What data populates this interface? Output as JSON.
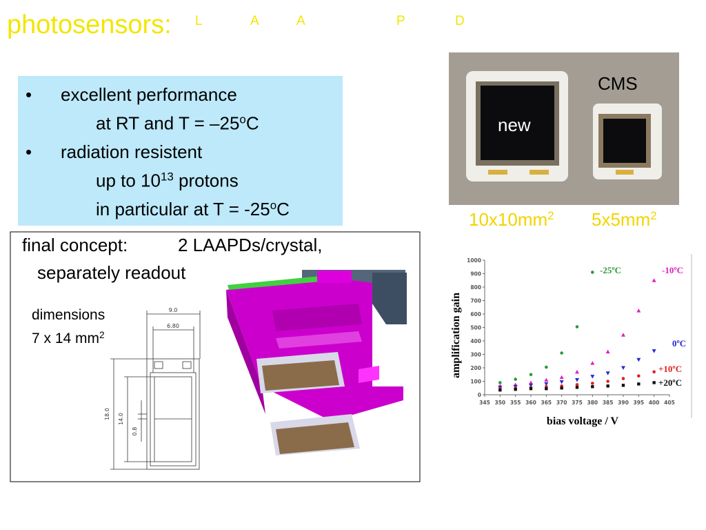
{
  "title": {
    "text": "photosensors:",
    "letters": [
      "L",
      "A",
      "A",
      "P",
      "D"
    ]
  },
  "features": {
    "lines": [
      {
        "bullet": "•",
        "parts": [
          {
            "t": "excellent performance"
          }
        ]
      },
      {
        "parts": [
          {
            "t": "at RT and T = –25"
          },
          {
            "sup": "o"
          },
          {
            "t": "C"
          }
        ]
      },
      {
        "bullet": "•",
        "parts": [
          {
            "t": "radiation resistent"
          }
        ]
      },
      {
        "parts": [
          {
            "t": "up to 10"
          },
          {
            "sup": "13"
          },
          {
            "t": " protons"
          }
        ]
      },
      {
        "parts": [
          {
            "t": "in particular at T = -25"
          },
          {
            "sup": "o"
          },
          {
            "t": "C"
          }
        ]
      }
    ]
  },
  "photo": {
    "labels": [
      "CMS",
      "new"
    ],
    "captions": [
      [
        {
          "t": "10x10mm"
        },
        {
          "sup": "2"
        }
      ],
      [
        {
          "t": "5x5mm"
        },
        {
          "sup": "2"
        }
      ]
    ]
  },
  "concept": {
    "heading": "final concept:",
    "detail": "2 LAAPDs/crystal,",
    "second_line": "separately readout",
    "dimensions": [
      [
        {
          "t": "dimensions"
        }
      ],
      [
        {
          "t": "7 x 14 mm"
        },
        {
          "sup": "2"
        }
      ]
    ]
  },
  "drawing": {
    "labels": [
      "9.0",
      "6.80",
      "18.0",
      "14.0",
      "0.8"
    ]
  },
  "chart_data": {
    "type": "scatter",
    "x_label": "bias voltage / V",
    "y_label": "amplification gain",
    "x": [
      350,
      355,
      360,
      365,
      370,
      375,
      380,
      385,
      390,
      395,
      400
    ],
    "xlim": [
      345,
      405
    ],
    "xticks": [
      345,
      350,
      355,
      360,
      365,
      370,
      375,
      380,
      385,
      390,
      395,
      400,
      405
    ],
    "ylim": [
      0,
      1000
    ],
    "yticks": [
      0,
      100,
      200,
      300,
      400,
      500,
      600,
      700,
      800,
      900,
      1000
    ],
    "series": [
      {
        "name": "-25ºC",
        "color": "#2a9a3a",
        "marker": "circle",
        "values": [
          90,
          115,
          150,
          205,
          310,
          505,
          910,
          null,
          null,
          null,
          null
        ]
      },
      {
        "name": "-10ºC",
        "color": "#e020c0",
        "marker": "triangle-up",
        "values": [
          65,
          75,
          90,
          110,
          130,
          170,
          235,
          320,
          445,
          625,
          850
        ]
      },
      {
        "name": "0ºC",
        "color": "#2828d0",
        "marker": "triangle-down",
        "values": [
          55,
          60,
          70,
          80,
          95,
          110,
          135,
          160,
          200,
          260,
          325
        ]
      },
      {
        "name": "+10ºC",
        "color": "#e02020",
        "marker": "circle",
        "values": [
          45,
          50,
          55,
          60,
          65,
          75,
          85,
          100,
          120,
          140,
          170
        ]
      },
      {
        "name": "+20ºC",
        "color": "#111111",
        "marker": "square",
        "values": [
          35,
          40,
          45,
          45,
          50,
          55,
          60,
          65,
          70,
          80,
          90
        ]
      }
    ]
  }
}
